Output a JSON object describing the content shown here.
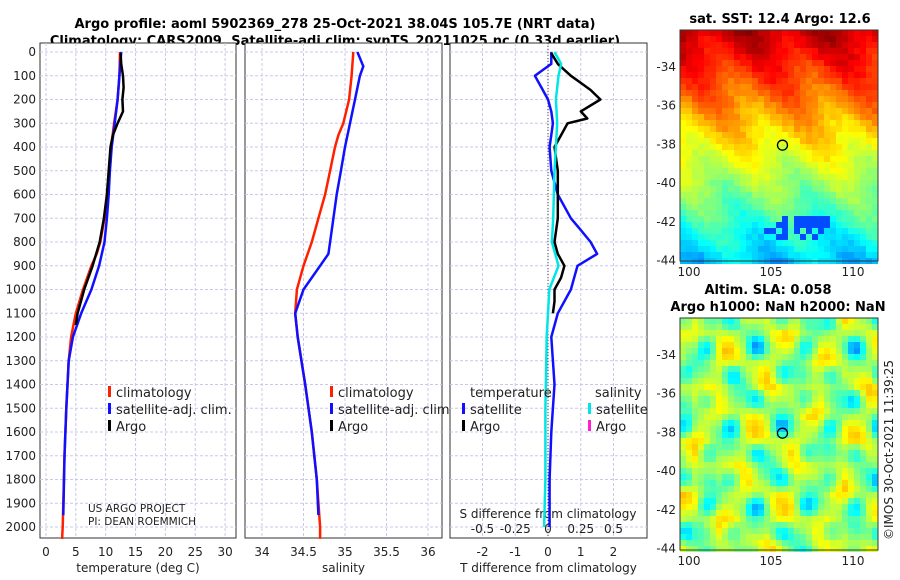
{
  "header": {
    "title1": "Argo profile: aoml 5902369_278 25-Oct-2021 38.04S 105.7E (NRT data)",
    "title2": "Climatology: CARS2009. Satellite-adj clim: synTS_20211025.nc (0.33d earlier)"
  },
  "credit": {
    "project": "US ARGO PROJECT",
    "pi": "PI: DEAN ROEMMICH",
    "copyright": "©IMOS 30-Oct-2021 11:39:25"
  },
  "colors": {
    "climatology": "#ff2000",
    "satellite": "#1010ff",
    "argo": "#000000",
    "sal_satellite": "#00e5e5",
    "sal_argo": "#ff20d0"
  },
  "chart_data": [
    {
      "type": "line",
      "name": "temperature",
      "xlabel": "temperature (deg C)",
      "ylabel": "",
      "xlim": [
        -1,
        32
      ],
      "ylim": [
        2050,
        0
      ],
      "grid": true,
      "xticks": [
        0,
        5,
        10,
        15,
        20,
        25,
        30
      ],
      "xticklabels": [
        "0",
        "5",
        "10",
        "15",
        "20",
        "25",
        "30"
      ],
      "yticks": [
        0,
        100,
        200,
        300,
        400,
        500,
        600,
        700,
        800,
        900,
        1000,
        1100,
        1200,
        1300,
        1400,
        1500,
        1600,
        1700,
        1800,
        1900,
        2000
      ],
      "yticklabels": [
        "0",
        "100",
        "200",
        "300",
        "400",
        "500",
        "600",
        "700",
        "800",
        "900",
        "1000",
        "1100",
        "1200",
        "1300",
        "1400",
        "1500",
        "1600",
        "1700",
        "1800",
        "1900",
        "2000"
      ],
      "legend": [
        "climatology",
        "satellite-adj. clim.",
        "Argo"
      ],
      "series": [
        {
          "name": "climatology",
          "depth": [
            0,
            100,
            200,
            300,
            400,
            500,
            600,
            700,
            800,
            850,
            900,
            1000,
            1100,
            1200,
            1300,
            1500,
            1700,
            2000,
            2050
          ],
          "values": [
            12.4,
            12.3,
            12.0,
            11.4,
            10.9,
            10.6,
            10.3,
            9.8,
            9.1,
            8.5,
            7.6,
            6.2,
            5.0,
            4.2,
            3.8,
            3.4,
            3.1,
            2.8,
            2.7
          ]
        },
        {
          "name": "satellite-adj. clim.",
          "depth": [
            0,
            100,
            200,
            300,
            400,
            500,
            600,
            700,
            800,
            900,
            1000,
            1100,
            1200,
            1300,
            1500,
            1700,
            1950
          ],
          "values": [
            12.6,
            12.3,
            12.0,
            11.5,
            11.0,
            10.7,
            10.5,
            10.2,
            9.8,
            8.9,
            7.6,
            5.9,
            4.5,
            3.8,
            3.4,
            3.1,
            2.9
          ]
        },
        {
          "name": "Argo",
          "depth": [
            5,
            50,
            100,
            150,
            200,
            250,
            300,
            350,
            400,
            500,
            600,
            700,
            800,
            900,
            1000,
            1100,
            1150
          ],
          "values": [
            12.5,
            12.6,
            12.9,
            13.0,
            12.8,
            12.9,
            12.0,
            11.2,
            10.8,
            10.5,
            10.2,
            9.7,
            9.0,
            7.8,
            6.4,
            5.3,
            5.0
          ]
        }
      ]
    },
    {
      "type": "line",
      "name": "salinity",
      "xlabel": "salinity",
      "ylabel": "",
      "xlim": [
        33.8,
        36.2
      ],
      "ylim": [
        2050,
        0
      ],
      "grid": true,
      "xticks": [
        34,
        34.5,
        35,
        35.5,
        36
      ],
      "xticklabels": [
        "34",
        "34.5",
        "35",
        "35.5",
        "36"
      ],
      "legend": [
        "climatology",
        "satellite-adj. clim.",
        "Argo"
      ],
      "series": [
        {
          "name": "climatology",
          "depth": [
            0,
            100,
            200,
            300,
            350,
            400,
            500,
            600,
            700,
            800,
            900,
            1000,
            1100,
            1200,
            1400,
            1600,
            1800,
            2000,
            2050
          ],
          "values": [
            35.1,
            35.08,
            35.05,
            34.98,
            34.92,
            34.88,
            34.82,
            34.76,
            34.68,
            34.6,
            34.5,
            34.42,
            34.4,
            34.43,
            34.52,
            34.6,
            34.66,
            34.7,
            34.7
          ]
        },
        {
          "name": "satellite-adj. clim.",
          "depth": [
            0,
            60,
            100,
            200,
            300,
            400,
            500,
            600,
            700,
            800,
            850,
            900,
            1000,
            1100,
            1200,
            1400,
            1600,
            1800,
            1950
          ],
          "values": [
            35.15,
            35.22,
            35.18,
            35.12,
            35.06,
            35.0,
            34.95,
            34.9,
            34.86,
            34.82,
            34.8,
            34.7,
            34.5,
            34.4,
            34.43,
            34.52,
            34.6,
            34.66,
            34.68
          ]
        },
        {
          "name": "Argo",
          "depth": [],
          "values": []
        }
      ]
    },
    {
      "type": "line",
      "name": "difference",
      "xlabel": "T difference from climatology",
      "x2label": "S difference from climatology",
      "xlim": [
        -3,
        3
      ],
      "ylim": [
        2050,
        0
      ],
      "grid": true,
      "xticks": [
        -2,
        -1,
        0,
        1,
        2
      ],
      "xticklabels": [
        "-2",
        "-1",
        "0",
        "1",
        "2"
      ],
      "x2ticks": [
        -0.5,
        -0.25,
        0,
        0.25,
        0.5
      ],
      "x2ticklabels": [
        "-0.5",
        "-0.25",
        "0",
        "0.25",
        "0.5"
      ],
      "legend_headers": [
        "temperature",
        "salinity"
      ],
      "legend": [
        "satellite",
        "Argo",
        "satellite",
        "Argo"
      ],
      "series": [
        {
          "name": "temperature satellite",
          "axis": "T",
          "depth": [
            0,
            50,
            100,
            150,
            200,
            250,
            300,
            350,
            400,
            500,
            600,
            700,
            750,
            800,
            850,
            900,
            950,
            1000,
            1100,
            1200,
            1400,
            1600,
            1800,
            2000
          ],
          "values": [
            0.1,
            0.1,
            -0.4,
            -0.2,
            0,
            0.1,
            0.15,
            0.1,
            0.05,
            0.1,
            0.3,
            0.7,
            1.0,
            1.3,
            1.5,
            0.9,
            0.8,
            0.7,
            0.3,
            0.1,
            0.2,
            0.1,
            0.05,
            0.05
          ]
        },
        {
          "name": "temperature Argo",
          "axis": "T",
          "depth": [
            5,
            50,
            100,
            130,
            160,
            200,
            250,
            280,
            300,
            350,
            400,
            500,
            600,
            700,
            800,
            850,
            900,
            950,
            1000,
            1050,
            1100
          ],
          "values": [
            0.1,
            0.3,
            0.7,
            1.0,
            1.3,
            1.6,
            1.0,
            1.2,
            0.6,
            0.4,
            0.2,
            0.3,
            0.3,
            0.3,
            0.2,
            0.3,
            0.5,
            0.4,
            0.2,
            0.2,
            0.15
          ]
        },
        {
          "name": "salinity satellite",
          "axis": "S",
          "depth": [
            0,
            50,
            100,
            200,
            300,
            500,
            700,
            800,
            900,
            1000,
            1200,
            1500,
            1800,
            2000
          ],
          "values": [
            0.05,
            0.1,
            0.08,
            0.06,
            0.07,
            0.05,
            0.04,
            0.03,
            0.08,
            0.01,
            -0.01,
            -0.02,
            -0.02,
            -0.03
          ]
        },
        {
          "name": "salinity Argo",
          "axis": "S",
          "depth": [],
          "values": []
        }
      ]
    },
    {
      "type": "heatmap",
      "name": "sst-map",
      "title": "sat. SST: 12.4 Argo: 12.6",
      "xticks": [
        100,
        105,
        110
      ],
      "xticklabels": [
        "100",
        "105",
        "110"
      ],
      "yticks": [
        -34,
        -36,
        -38,
        -40,
        -42,
        -44
      ],
      "yticklabels": [
        "-34",
        "-36",
        "-38",
        "-40",
        "-42",
        "-44"
      ],
      "xlim": [
        99.4,
        112.1
      ],
      "ylim": [
        -44,
        -32.1
      ],
      "marker": {
        "lon": 105.7,
        "lat": -38.04
      }
    },
    {
      "type": "heatmap",
      "name": "sla-map",
      "title1": "Altim. SLA: 0.058",
      "title2": "Argo h1000: NaN h2000: NaN",
      "xticks": [
        100,
        105,
        110
      ],
      "xticklabels": [
        "100",
        "105",
        "110"
      ],
      "yticks": [
        -34,
        -36,
        -38,
        -40,
        -42,
        -44
      ],
      "yticklabels": [
        "-34",
        "-36",
        "-38",
        "-40",
        "-42",
        "-44"
      ],
      "xlim": [
        99.4,
        112.1
      ],
      "ylim": [
        -44,
        -32.1
      ],
      "marker": {
        "lon": 105.7,
        "lat": -38.04
      }
    }
  ]
}
